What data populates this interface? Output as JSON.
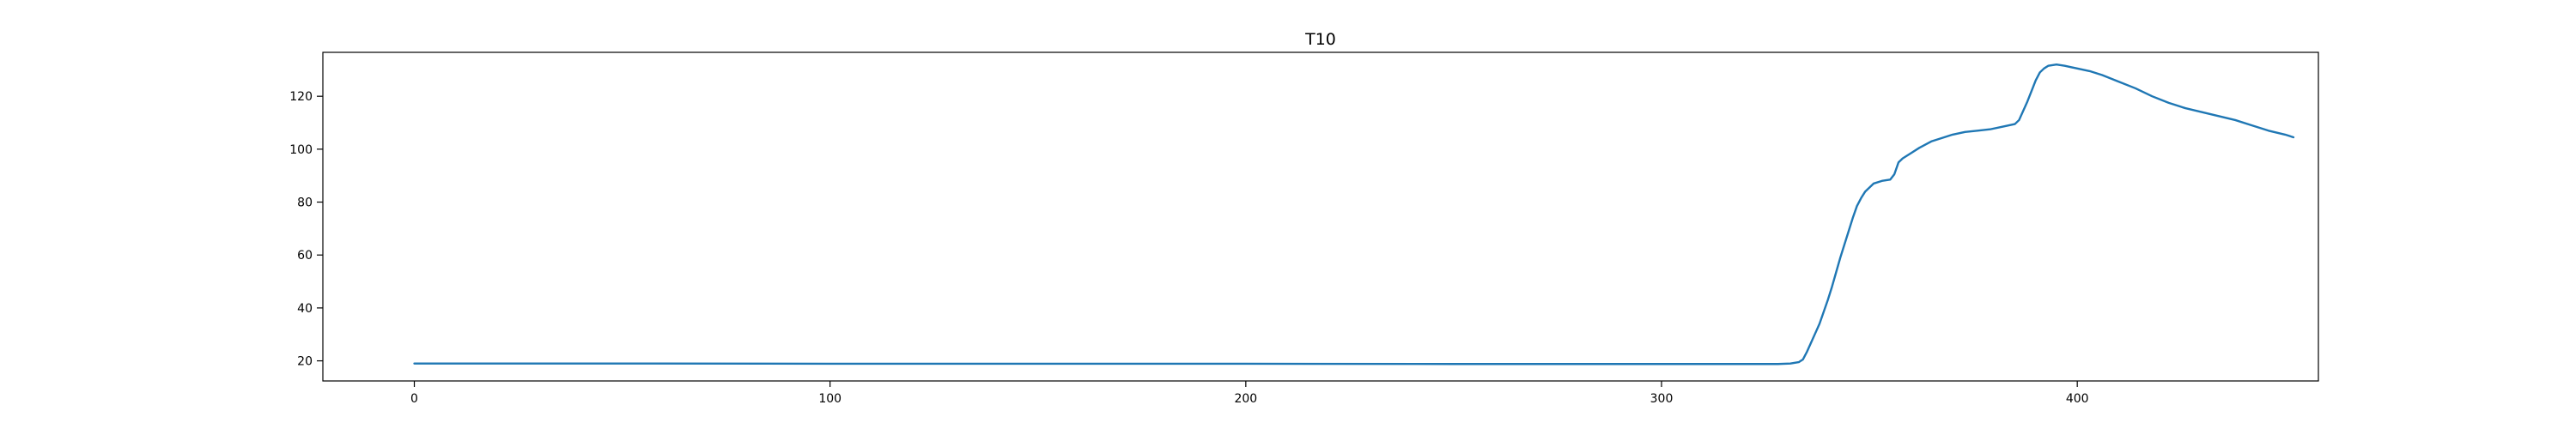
{
  "chart_data": {
    "type": "line",
    "title": "T10",
    "xlabel": "",
    "ylabel": "",
    "xlim": [
      -22,
      458
    ],
    "ylim": [
      12.4,
      136.6
    ],
    "x_ticks": [
      0,
      100,
      200,
      300,
      400
    ],
    "y_ticks": [
      20,
      40,
      60,
      80,
      100,
      120
    ],
    "grid": false,
    "legend": "none",
    "series": [
      {
        "name": "T10",
        "color": "#1f77b4",
        "points": [
          [
            0,
            19.0
          ],
          [
            50,
            19.0
          ],
          [
            100,
            18.9
          ],
          [
            150,
            18.9
          ],
          [
            200,
            18.9
          ],
          [
            250,
            18.8
          ],
          [
            300,
            18.8
          ],
          [
            328,
            18.8
          ],
          [
            331,
            19.0
          ],
          [
            333,
            19.5
          ],
          [
            334,
            20.5
          ],
          [
            335,
            23.5
          ],
          [
            336,
            27.0
          ],
          [
            337,
            30.5
          ],
          [
            338,
            34.0
          ],
          [
            339,
            38.5
          ],
          [
            340,
            43.0
          ],
          [
            341,
            48.0
          ],
          [
            342,
            53.5
          ],
          [
            343,
            59.0
          ],
          [
            344,
            64.0
          ],
          [
            345,
            69.0
          ],
          [
            346,
            74.0
          ],
          [
            347,
            78.5
          ],
          [
            348,
            81.5
          ],
          [
            349,
            84.0
          ],
          [
            350,
            85.5
          ],
          [
            351,
            87.0
          ],
          [
            353,
            88.0
          ],
          [
            355,
            88.5
          ],
          [
            356,
            90.5
          ],
          [
            357,
            95.0
          ],
          [
            358,
            96.5
          ],
          [
            360,
            98.5
          ],
          [
            362,
            100.5
          ],
          [
            365,
            103.0
          ],
          [
            368,
            104.5
          ],
          [
            370,
            105.5
          ],
          [
            373,
            106.5
          ],
          [
            376,
            107.0
          ],
          [
            379,
            107.5
          ],
          [
            382,
            108.5
          ],
          [
            385,
            109.5
          ],
          [
            386,
            111.0
          ],
          [
            387,
            114.5
          ],
          [
            388,
            118.0
          ],
          [
            389,
            122.0
          ],
          [
            390,
            126.0
          ],
          [
            391,
            129.0
          ],
          [
            392,
            130.5
          ],
          [
            393,
            131.5
          ],
          [
            395,
            132.0
          ],
          [
            397,
            131.5
          ],
          [
            400,
            130.5
          ],
          [
            403,
            129.5
          ],
          [
            406,
            128.0
          ],
          [
            410,
            125.5
          ],
          [
            414,
            123.0
          ],
          [
            418,
            120.0
          ],
          [
            422,
            117.5
          ],
          [
            426,
            115.5
          ],
          [
            430,
            114.0
          ],
          [
            434,
            112.5
          ],
          [
            438,
            111.0
          ],
          [
            442,
            109.0
          ],
          [
            446,
            107.0
          ],
          [
            450,
            105.5
          ],
          [
            452,
            104.5
          ]
        ]
      }
    ]
  }
}
